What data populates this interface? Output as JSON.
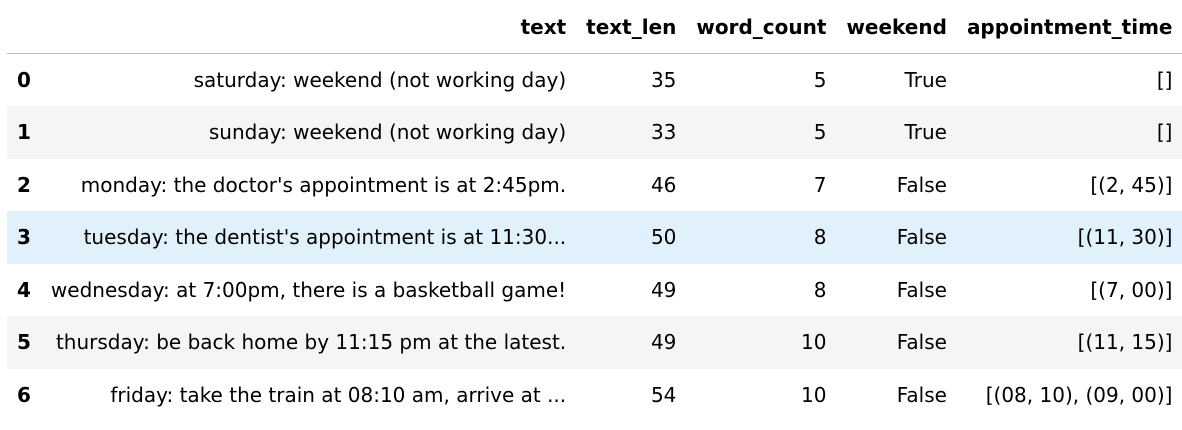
{
  "table": {
    "columns": [
      "",
      "text",
      "text_len",
      "word_count",
      "weekend",
      "appointment_time"
    ],
    "rows": [
      {
        "index": "0",
        "text": "saturday: weekend (not working day)",
        "text_len": "35",
        "word_count": "5",
        "weekend": "True",
        "appointment_time": "[]"
      },
      {
        "index": "1",
        "text": "sunday: weekend (not working day)",
        "text_len": "33",
        "word_count": "5",
        "weekend": "True",
        "appointment_time": "[]"
      },
      {
        "index": "2",
        "text": "monday: the doctor's appointment is at 2:45pm.",
        "text_len": "46",
        "word_count": "7",
        "weekend": "False",
        "appointment_time": "[(2, 45)]"
      },
      {
        "index": "3",
        "text": "tuesday: the dentist's appointment is at 11:30...",
        "text_len": "50",
        "word_count": "8",
        "weekend": "False",
        "appointment_time": "[(11, 30)]"
      },
      {
        "index": "4",
        "text": "wednesday: at 7:00pm, there is a basketball game!",
        "text_len": "49",
        "word_count": "8",
        "weekend": "False",
        "appointment_time": "[(7, 00)]"
      },
      {
        "index": "5",
        "text": "thursday: be back home by 11:15 pm at the latest.",
        "text_len": "49",
        "word_count": "10",
        "weekend": "False",
        "appointment_time": "[(11, 15)]"
      },
      {
        "index": "6",
        "text": "friday: take the train at 08:10 am, arrive at ...",
        "text_len": "54",
        "word_count": "10",
        "weekend": "False",
        "appointment_time": "[(08, 10), (09, 00)]"
      }
    ],
    "hovered_row_index": 3
  },
  "colors": {
    "header_border": "#bdbdbd",
    "stripe": "#f5f5f5",
    "hover": "#e1f1fb"
  }
}
